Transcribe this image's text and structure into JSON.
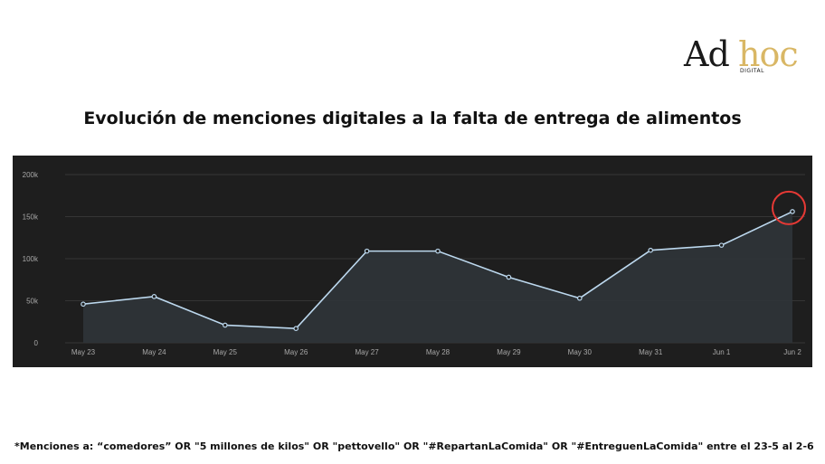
{
  "brand": {
    "logo_ad": "Ad",
    "logo_hoc": "hoc",
    "logo_sub": "DIGITAL",
    "colors": {
      "ad": "#1a1a1a",
      "hoc": "#d9b765"
    }
  },
  "title": "Evolución de menciones digitales a la falta de entrega de alimentos",
  "footnote": "*Menciones a: “comedores” OR \"5 millones de kilos\" OR \"pettovello\" OR \"#RepartanLaComida\" OR \"#EntreguenLaComida\" entre el 23-5 al 2-6",
  "chart_data": {
    "type": "area",
    "categories": [
      "May 23",
      "May 24",
      "May 25",
      "May 26",
      "May 27",
      "May 28",
      "May 29",
      "May 30",
      "May 31",
      "Jun 1",
      "Jun 2"
    ],
    "values": [
      46000,
      55000,
      21000,
      17000,
      109000,
      109000,
      78000,
      53000,
      110000,
      116000,
      156000
    ],
    "ylim": [
      0,
      200000
    ],
    "yticks": [
      0,
      50000,
      100000,
      150000,
      200000
    ],
    "ytick_labels": [
      "0",
      "50k",
      "100k",
      "150k",
      "200k"
    ],
    "grid": true,
    "highlight_index": 10,
    "colors": {
      "background": "#1e1e1e",
      "line": "#bcd8ee",
      "area": "#2f3438",
      "grid": "#353535",
      "tick_text": "#a8a8a8",
      "highlight": "#e53935"
    }
  }
}
